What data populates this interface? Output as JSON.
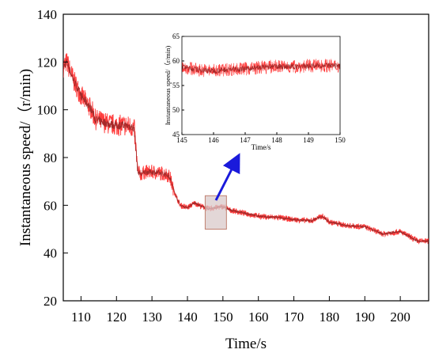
{
  "chart_data": [
    {
      "type": "line",
      "title": "",
      "xlabel": "Time/s",
      "ylabel": "Instantaneous speed/（r/min)",
      "xlim": [
        105,
        208
      ],
      "ylim": [
        20,
        140
      ],
      "xticks": [
        110,
        120,
        130,
        140,
        150,
        160,
        170,
        180,
        190,
        200
      ],
      "yticks": [
        20,
        40,
        60,
        80,
        100,
        120,
        140
      ],
      "grid": false,
      "legend": "none",
      "colors": {
        "line": "#a52a2a",
        "noise": "#ff1a1a",
        "highlight_box_fill": "#d9c9c9",
        "highlight_box_stroke": "#c08070",
        "arrow": "#1a1adb"
      },
      "series": [
        {
          "x": [
            105,
            106,
            108,
            110,
            112,
            113,
            114,
            116,
            118,
            120,
            122,
            124,
            125,
            126,
            127,
            128,
            130,
            132,
            134,
            135,
            136,
            137,
            138,
            140,
            142,
            144,
            146,
            148,
            150,
            152,
            155,
            160,
            163,
            165,
            170,
            175,
            178,
            180,
            185,
            190,
            195,
            200,
            205,
            208
          ],
          "values": [
            118,
            120,
            112,
            106,
            102,
            100,
            96,
            95,
            94,
            93.5,
            93.5,
            93,
            92,
            74,
            73,
            74,
            74,
            73.5,
            73,
            72,
            67,
            63,
            60,
            59,
            61,
            59.5,
            58.5,
            59,
            59.5,
            58,
            57,
            55.5,
            55,
            55,
            54,
            53.5,
            55.5,
            53,
            51.5,
            51,
            48,
            49,
            45,
            45
          ]
        }
      ],
      "highlight_region": {
        "x": [
          145,
          151
        ],
        "y": [
          50,
          64
        ]
      }
    },
    {
      "type": "line",
      "title": "",
      "xlabel": "Time/s",
      "ylabel": "Instantaneous speed/（r/min)",
      "xlim": [
        145,
        150
      ],
      "ylim": [
        45,
        65
      ],
      "xticks": [
        145,
        146,
        147,
        148,
        149,
        150
      ],
      "yticks": [
        45,
        50,
        55,
        60,
        65
      ],
      "grid": false,
      "legend": "none",
      "series": [
        {
          "x": [
            145,
            145.5,
            146,
            146.5,
            147,
            147.5,
            148,
            148.5,
            149,
            149.5,
            150
          ],
          "values": [
            58.8,
            58.2,
            58.0,
            58.3,
            58.4,
            58.7,
            58.9,
            58.8,
            59.0,
            59.1,
            58.9
          ]
        }
      ]
    }
  ]
}
